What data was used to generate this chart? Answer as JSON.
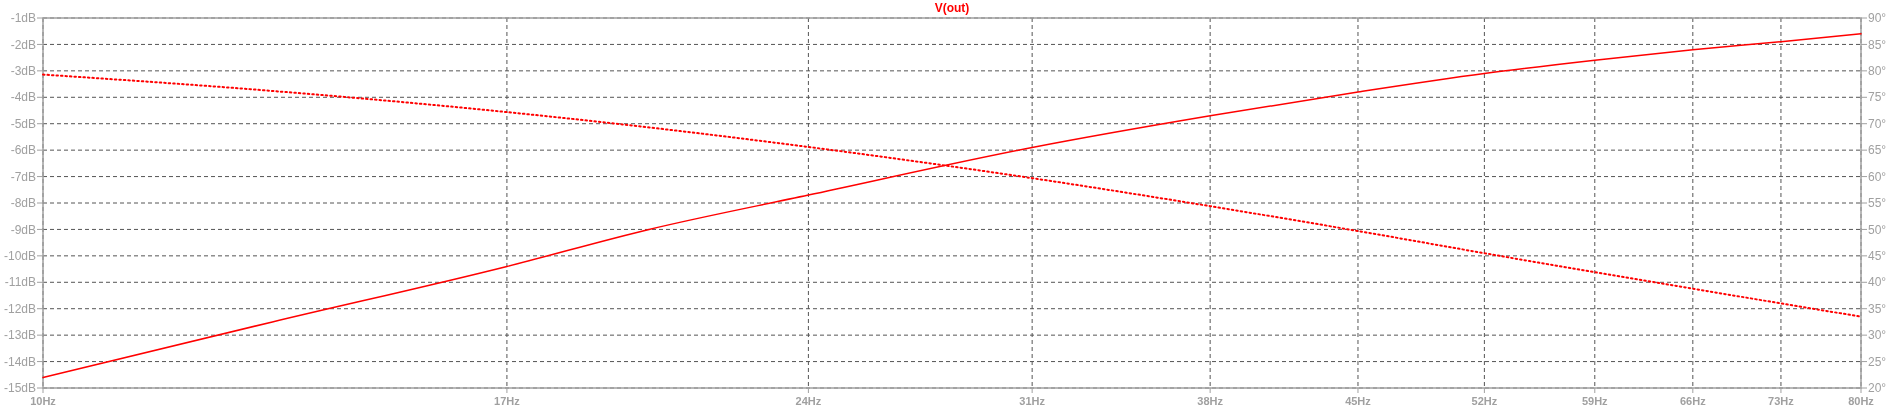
{
  "chart_data": {
    "type": "line",
    "title": "V(out)",
    "log": "x",
    "x": [
      10,
      13,
      17,
      20,
      24,
      31,
      38,
      45,
      52,
      59,
      66,
      73,
      80
    ],
    "xlim": [
      10,
      80
    ],
    "xticks": [
      {
        "value": 10,
        "label": "10Hz"
      },
      {
        "value": 17,
        "label": "17Hz"
      },
      {
        "value": 24,
        "label": "24Hz"
      },
      {
        "value": 31,
        "label": "31Hz"
      },
      {
        "value": 38,
        "label": "38Hz"
      },
      {
        "value": 45,
        "label": "45Hz"
      },
      {
        "value": 52,
        "label": "52Hz"
      },
      {
        "value": 59,
        "label": "59Hz"
      },
      {
        "value": 66,
        "label": "66Hz"
      },
      {
        "value": 73,
        "label": "73Hz"
      },
      {
        "value": 80,
        "label": "80Hz"
      }
    ],
    "ylim": [
      -15,
      -1
    ],
    "yticks": [
      {
        "value": -1,
        "label": "-1dB"
      },
      {
        "value": -2,
        "label": "-2dB"
      },
      {
        "value": -3,
        "label": "-3dB"
      },
      {
        "value": -4,
        "label": "-4dB"
      },
      {
        "value": -5,
        "label": "-5dB"
      },
      {
        "value": -6,
        "label": "-6dB"
      },
      {
        "value": -7,
        "label": "-7dB"
      },
      {
        "value": -8,
        "label": "-8dB"
      },
      {
        "value": -9,
        "label": "-9dB"
      },
      {
        "value": -10,
        "label": "-10dB"
      },
      {
        "value": -11,
        "label": "-11dB"
      },
      {
        "value": -12,
        "label": "-12dB"
      },
      {
        "value": -13,
        "label": "-13dB"
      },
      {
        "value": -14,
        "label": "-14dB"
      },
      {
        "value": -15,
        "label": "-15dB"
      }
    ],
    "y2lim": [
      20,
      90
    ],
    "y2ticks": [
      {
        "value": 20,
        "label": "20°"
      },
      {
        "value": 25,
        "label": "25°"
      },
      {
        "value": 30,
        "label": "30°"
      },
      {
        "value": 35,
        "label": "35°"
      },
      {
        "value": 40,
        "label": "40°"
      },
      {
        "value": 45,
        "label": "45°"
      },
      {
        "value": 50,
        "label": "50°"
      },
      {
        "value": 55,
        "label": "55°"
      },
      {
        "value": 60,
        "label": "60°"
      },
      {
        "value": 65,
        "label": "65°"
      },
      {
        "value": 70,
        "label": "70°"
      },
      {
        "value": 75,
        "label": "75°"
      },
      {
        "value": 80,
        "label": "80°"
      },
      {
        "value": 85,
        "label": "85°"
      },
      {
        "value": 90,
        "label": "90°"
      }
    ],
    "grid": true,
    "series": [
      {
        "color": "#ff0000",
        "line_style": "solid",
        "values": [
          -14.6,
          -12.5,
          -10.4,
          -9.0,
          -7.7,
          -5.9,
          -4.7,
          -3.8,
          -3.1,
          -2.6,
          -2.2,
          -1.9,
          -1.6
        ]
      },
      {
        "color": "#ff0000",
        "line_style": "dotted",
        "axis": "y2",
        "values": [
          79.3,
          76.2,
          72.2,
          69.3,
          65.6,
          59.7,
          54.4,
          49.7,
          45.5,
          41.9,
          38.8,
          36.0,
          33.5
        ]
      }
    ]
  }
}
